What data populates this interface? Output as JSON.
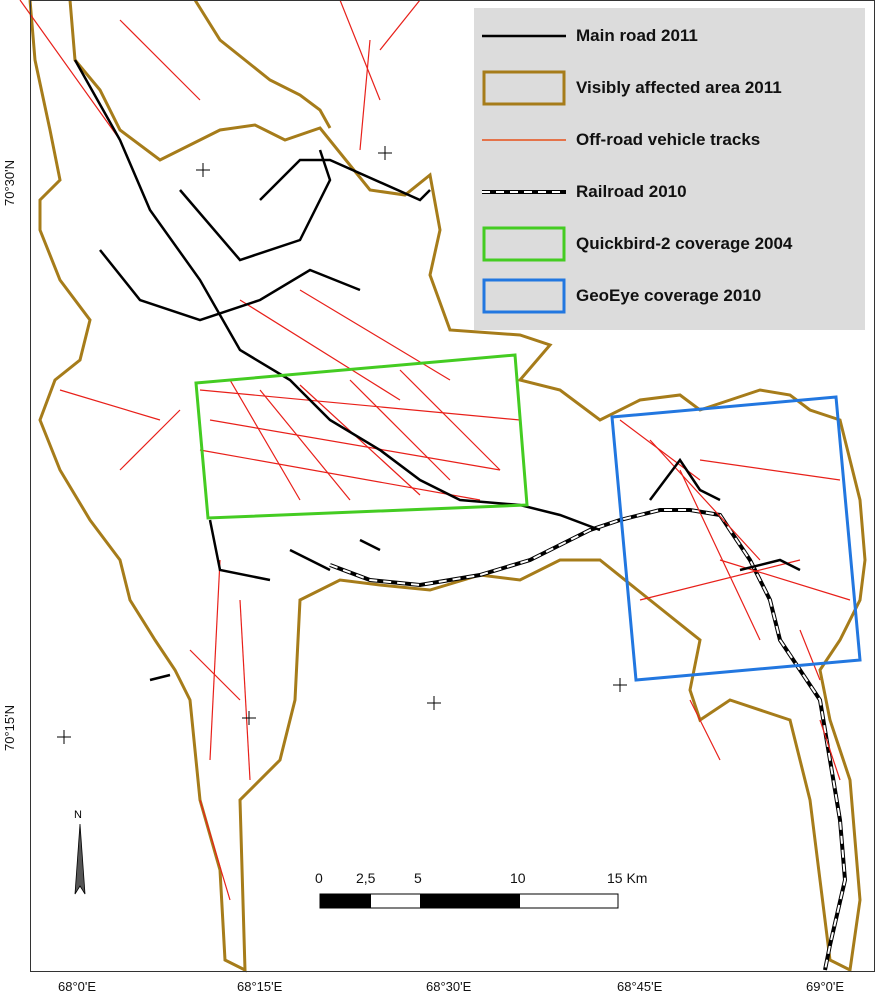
{
  "map": {
    "colors": {
      "main_road": "#000000",
      "affected_area": "#a67c1a",
      "tracks": "#e8201a",
      "railroad": "#000000",
      "quickbird": "#44cc22",
      "geoeye": "#2277e0",
      "legend_bg": "#dcdcdc"
    },
    "lat_labels": [
      "70°30'N",
      "70°15'N"
    ],
    "lon_labels": [
      "68°0'E",
      "68°15'E",
      "68°30'E",
      "68°45'E",
      "69°0'E"
    ],
    "legend": [
      {
        "symbol": "line",
        "label": "Main road 2011"
      },
      {
        "symbol": "box-brown",
        "label": "Visibly affected area  2011"
      },
      {
        "symbol": "line-red",
        "label": "Off-road vehicle tracks"
      },
      {
        "symbol": "rail",
        "label": "Railroad 2010"
      },
      {
        "symbol": "box-green",
        "label": "Quickbird-2 coverage 2004"
      },
      {
        "symbol": "box-blue",
        "label": "GeoEye  coverage 2010"
      }
    ],
    "scale": {
      "ticks": [
        "0",
        "2,5",
        "5",
        "10",
        "15 Km"
      ]
    },
    "north_label": "N"
  }
}
